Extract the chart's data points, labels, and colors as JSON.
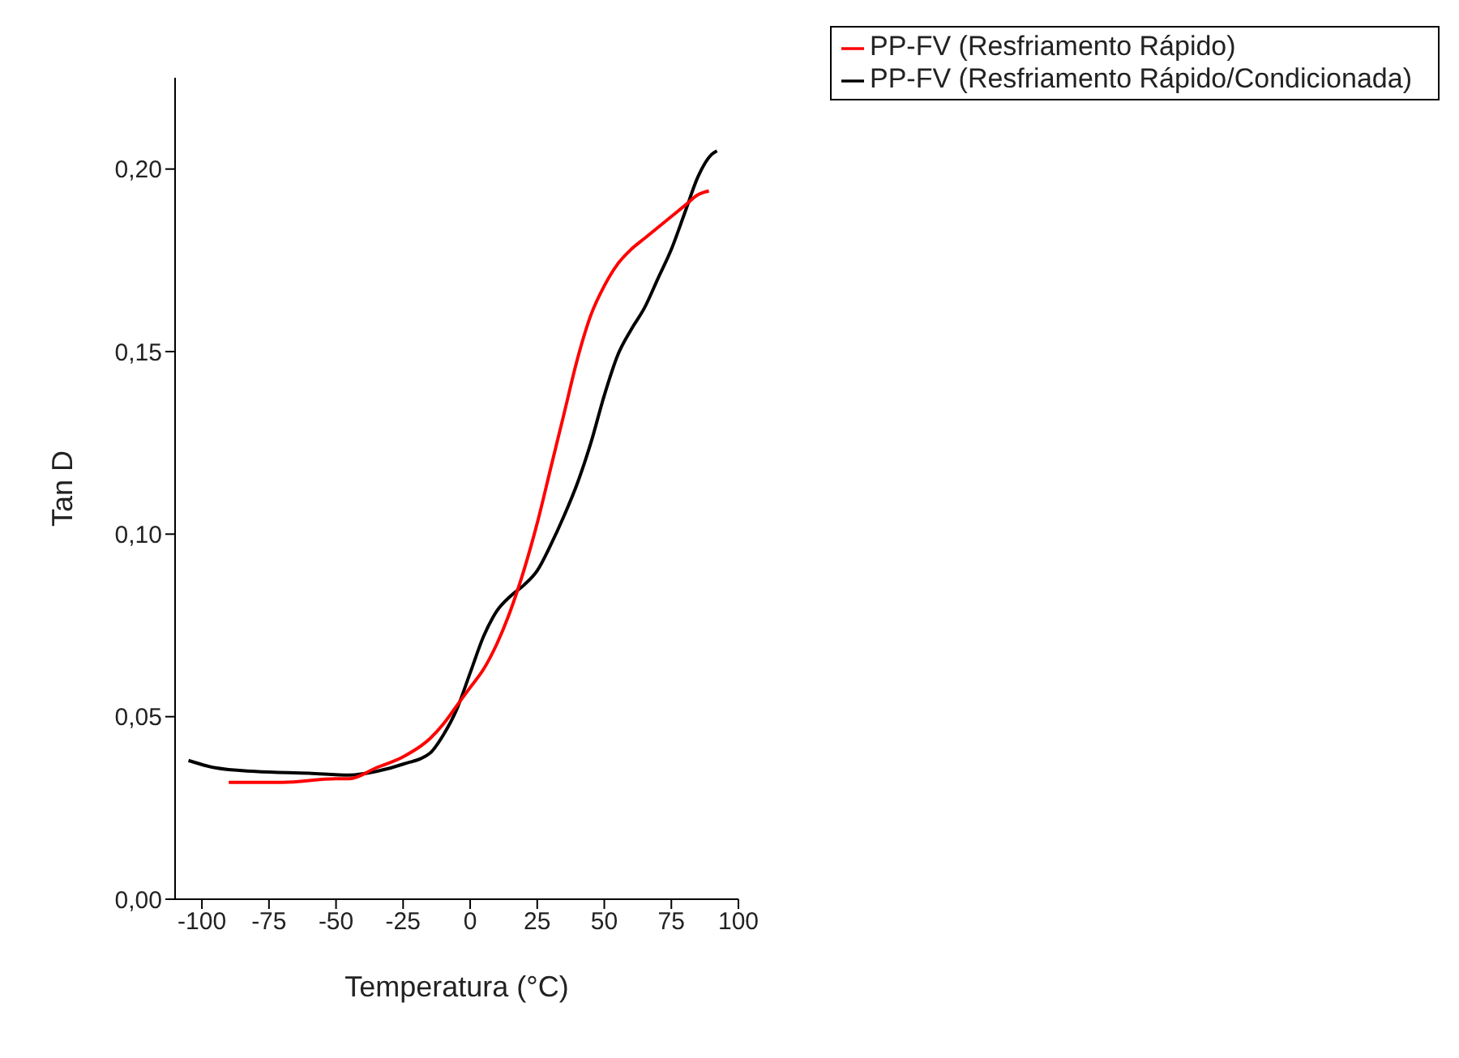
{
  "chart_data": {
    "type": "line",
    "xlabel": "Temperatura (°C)",
    "ylabel": "Tan D",
    "xlim": [
      -110,
      100
    ],
    "xticks": [
      -100,
      -75,
      -50,
      -25,
      0,
      25,
      50,
      75,
      100
    ],
    "ylim": [
      0,
      0.225
    ],
    "yticks": [
      {
        "value": 0,
        "label": "0,00"
      },
      {
        "value": 0.05,
        "label": "0,05"
      },
      {
        "value": 0.1,
        "label": "0,10"
      },
      {
        "value": 0.15,
        "label": "0,15"
      },
      {
        "value": 0.2,
        "label": "0,20"
      }
    ],
    "grid": false,
    "legend": "top right",
    "marker": "none",
    "line_style": "solid",
    "series": [
      {
        "name": "PP-FV (Resfriamento Rápido/Condicionada)",
        "color": "#000000",
        "x": [
          -105,
          -95,
          -80,
          -60,
          -45,
          -35,
          -25,
          -15,
          -10,
          -5,
          0,
          5,
          10,
          15,
          20,
          25,
          30,
          35,
          40,
          45,
          50,
          55,
          60,
          65,
          70,
          75,
          80,
          85,
          90,
          92
        ],
        "values": [
          0.038,
          0.036,
          0.035,
          0.0345,
          0.034,
          0.035,
          0.037,
          0.04,
          0.045,
          0.052,
          0.062,
          0.072,
          0.079,
          0.083,
          0.086,
          0.09,
          0.097,
          0.105,
          0.114,
          0.125,
          0.138,
          0.149,
          0.156,
          0.162,
          0.17,
          0.178,
          0.188,
          0.198,
          0.204,
          0.205
        ]
      },
      {
        "name": "PP-FV (Resfriamento Rápido)",
        "color": "#ff0000",
        "x": [
          -90,
          -70,
          -50,
          -45,
          -35,
          -25,
          -15,
          -10,
          -5,
          0,
          5,
          10,
          15,
          20,
          25,
          30,
          35,
          40,
          45,
          50,
          55,
          60,
          65,
          70,
          75,
          80,
          85,
          89
        ],
        "values": [
          0.032,
          0.032,
          0.033,
          0.033,
          0.036,
          0.039,
          0.044,
          0.048,
          0.053,
          0.058,
          0.063,
          0.07,
          0.079,
          0.09,
          0.103,
          0.118,
          0.133,
          0.148,
          0.16,
          0.168,
          0.174,
          0.178,
          0.181,
          0.184,
          0.187,
          0.19,
          0.193,
          0.194
        ]
      }
    ]
  }
}
